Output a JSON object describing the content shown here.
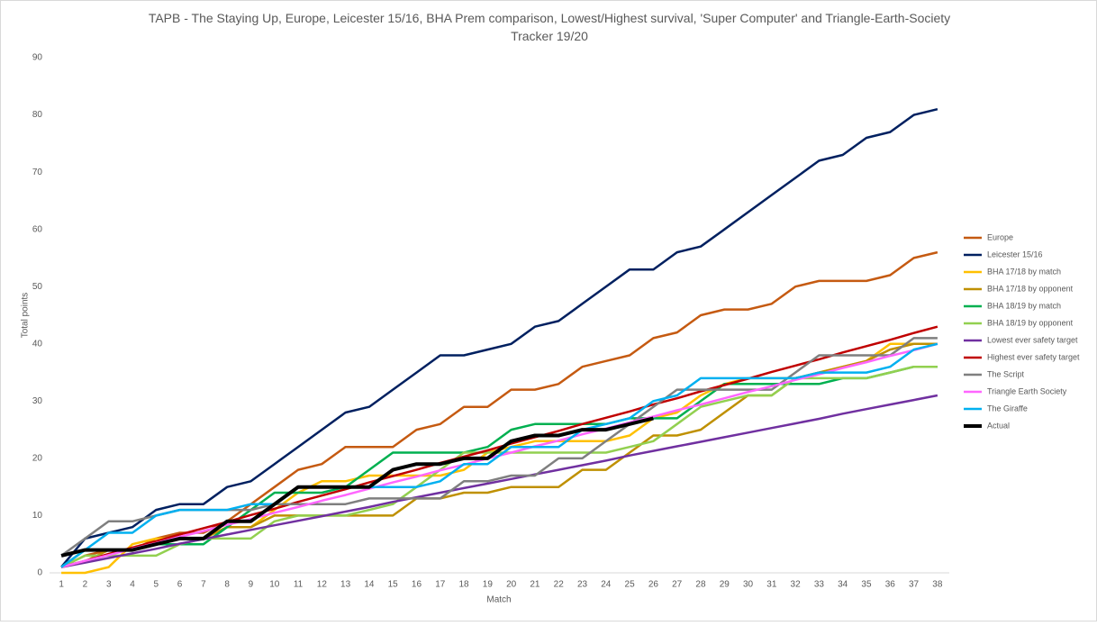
{
  "chart_data": {
    "type": "line",
    "title": "TAPB - The Staying Up, Europe, Leicester 15/16, BHA Prem comparison, Lowest/Highest survival, 'Super Computer' and Triangle-Earth-Society Tracker 19/20",
    "x_label": "Match",
    "y_label": "Total points",
    "categories": [
      1,
      2,
      3,
      4,
      5,
      6,
      7,
      8,
      9,
      10,
      11,
      12,
      13,
      14,
      15,
      16,
      17,
      18,
      19,
      20,
      21,
      22,
      23,
      24,
      25,
      26,
      27,
      28,
      29,
      30,
      31,
      32,
      33,
      34,
      35,
      36,
      37,
      38
    ],
    "ylim": [
      0,
      90
    ],
    "yticks": [
      0,
      10,
      20,
      30,
      40,
      50,
      60,
      70,
      80,
      90
    ],
    "grid": false,
    "legend": "right",
    "series": [
      {
        "name": "Europe",
        "color": "#c55a11",
        "values": [
          1,
          3,
          4,
          4,
          6,
          7,
          7,
          9,
          12,
          15,
          18,
          19,
          22,
          22,
          22,
          25,
          26,
          29,
          29,
          32,
          32,
          33,
          36,
          37,
          38,
          41,
          42,
          45,
          46,
          46,
          47,
          50,
          51,
          51,
          51,
          52,
          55,
          56
        ]
      },
      {
        "name": "Leicester 15/16",
        "color": "#002060",
        "values": [
          1,
          6,
          7,
          8,
          11,
          12,
          12,
          15,
          16,
          19,
          22,
          25,
          28,
          29,
          32,
          35,
          38,
          38,
          39,
          40,
          43,
          44,
          47,
          50,
          53,
          53,
          56,
          57,
          60,
          63,
          66,
          69,
          72,
          73,
          76,
          77,
          80,
          81
        ]
      },
      {
        "name": "BHA 17/18 by match",
        "color": "#ffc000",
        "values": [
          0,
          0,
          1,
          5,
          6,
          6,
          6,
          8,
          8,
          11,
          14,
          16,
          16,
          17,
          17,
          17,
          17,
          18,
          21,
          22,
          23,
          23,
          23,
          23,
          24,
          27,
          28,
          31,
          33,
          34,
          34,
          34,
          35,
          36,
          37,
          40,
          40,
          40
        ]
      },
      {
        "name": "BHA 17/18 by opponent",
        "color": "#bf9000",
        "values": [
          1,
          2,
          4,
          4,
          5,
          5,
          6,
          8,
          8,
          10,
          10,
          10,
          10,
          10,
          10,
          13,
          13,
          14,
          14,
          15,
          15,
          15,
          18,
          18,
          21,
          24,
          24,
          25,
          28,
          31,
          31,
          34,
          35,
          36,
          37,
          39,
          40,
          40
        ]
      },
      {
        "name": "BHA 18/19 by match",
        "color": "#00b050",
        "values": [
          1,
          4,
          4,
          4,
          5,
          5,
          5,
          8,
          11,
          14,
          14,
          14,
          15,
          18,
          21,
          21,
          21,
          21,
          22,
          25,
          26,
          26,
          26,
          26,
          27,
          27,
          27,
          30,
          33,
          33,
          33,
          33,
          33,
          34,
          34,
          35,
          36,
          36
        ]
      },
      {
        "name": "BHA 18/19 by opponent",
        "color": "#92d050",
        "values": [
          1,
          3,
          3,
          3,
          3,
          5,
          6,
          6,
          6,
          9,
          10,
          10,
          10,
          11,
          12,
          15,
          18,
          21,
          21,
          21,
          21,
          21,
          21,
          21,
          22,
          23,
          26,
          29,
          30,
          31,
          31,
          34,
          34,
          34,
          34,
          35,
          36,
          36
        ]
      },
      {
        "name": "Lowest ever safety target",
        "color": "#7030a0",
        "values": [
          1,
          1.8,
          2.6,
          3.4,
          4.2,
          5.1,
          5.9,
          6.7,
          7.5,
          8.3,
          9.1,
          9.9,
          10.7,
          11.5,
          12.4,
          13.2,
          14,
          14.8,
          15.6,
          16.4,
          17.2,
          18,
          18.8,
          19.6,
          20.5,
          21.3,
          22.1,
          22.9,
          23.7,
          24.5,
          25.3,
          26.1,
          26.9,
          27.8,
          28.6,
          29.4,
          30.2,
          31
        ]
      },
      {
        "name": "Highest ever safety target",
        "color": "#c00000",
        "values": [
          1,
          2.1,
          3.3,
          4.4,
          5.5,
          6.7,
          7.8,
          8.9,
          10.1,
          11.2,
          12.4,
          13.5,
          14.6,
          15.8,
          16.9,
          18,
          19.2,
          20.3,
          21.4,
          22.6,
          23.7,
          24.8,
          26,
          27.1,
          28.2,
          29.4,
          30.5,
          31.7,
          32.8,
          33.9,
          35.1,
          36.2,
          37.3,
          38.5,
          39.6,
          40.7,
          41.9,
          43
        ]
      },
      {
        "name": "The Script",
        "color": "#7f7f7f",
        "values": [
          3,
          6,
          9,
          9,
          10,
          11,
          11,
          11,
          11,
          12,
          12,
          12,
          12,
          13,
          13,
          13,
          13,
          16,
          16,
          17,
          17,
          20,
          20,
          23,
          26,
          29,
          32,
          32,
          32,
          32,
          32,
          35,
          38,
          38,
          38,
          38,
          41,
          41
        ]
      },
      {
        "name": "Triangle Earth Society",
        "color": "#ff66ff",
        "values": [
          1,
          2.1,
          3.1,
          4.2,
          5.2,
          6.3,
          7.3,
          8.4,
          9.4,
          10.5,
          11.5,
          12.6,
          13.6,
          14.7,
          15.8,
          16.8,
          17.9,
          18.9,
          20,
          21,
          22.1,
          23.1,
          24.2,
          25.2,
          26.3,
          27.3,
          28.4,
          29.4,
          30.5,
          31.6,
          32.6,
          33.7,
          34.7,
          35.8,
          36.8,
          37.9,
          38.9,
          40
        ]
      },
      {
        "name": "The Giraffe",
        "color": "#00b0f0",
        "values": [
          1,
          4,
          7,
          7,
          10,
          11,
          11,
          11,
          12,
          12,
          15,
          15,
          15,
          15,
          15,
          15,
          16,
          19,
          19,
          22,
          22,
          22,
          25,
          26,
          27,
          30,
          31,
          34,
          34,
          34,
          34,
          34,
          35,
          35,
          35,
          36,
          39,
          40
        ]
      },
      {
        "name": "Actual",
        "color": "#000000",
        "values": [
          3,
          4,
          4,
          4,
          5,
          6,
          6,
          9,
          9,
          12,
          15,
          15,
          15,
          15,
          18,
          19,
          19,
          20,
          20,
          23,
          24,
          24,
          25,
          25,
          26,
          27,
          null,
          null,
          null,
          null,
          null,
          null,
          null,
          null,
          null,
          null,
          null,
          null
        ]
      }
    ]
  }
}
